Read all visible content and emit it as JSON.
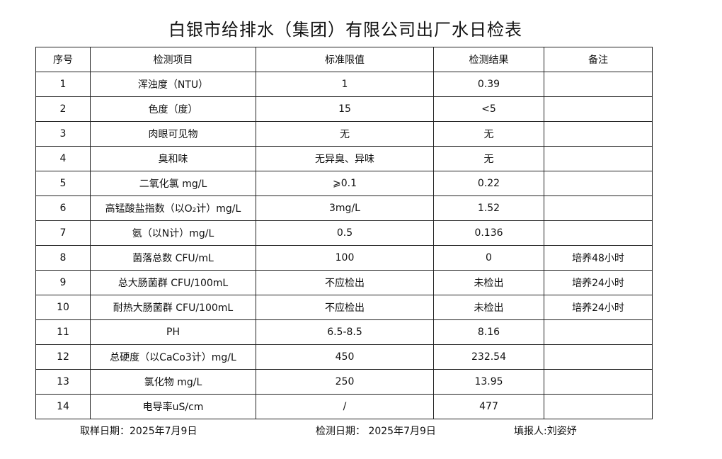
{
  "title": "白银市给排水（集团）有限公司出厂水日检表",
  "headers": [
    "序号",
    "检测项目",
    "标准限值",
    "检测结果",
    "备注"
  ],
  "rows": [
    [
      "1",
      "浑浊度（NTU）",
      "1",
      "0.39",
      ""
    ],
    [
      "2",
      "色度（度）",
      "15",
      "<5",
      ""
    ],
    [
      "3",
      "肉眼可见物",
      "无",
      "无",
      ""
    ],
    [
      "4",
      "臭和味",
      "无异臭、异味",
      "无",
      ""
    ],
    [
      "5",
      "二氧化氯 mg/L",
      "⩾0.1",
      "0.22",
      ""
    ],
    [
      "6",
      "高锰酸盐指数（以O₂计）mg/L",
      "3mg/L",
      "1.52",
      ""
    ],
    [
      "7",
      "氨（以N计）mg/L",
      "0.5",
      "0.136",
      ""
    ],
    [
      "8",
      "菌落总数 CFU/mL",
      "100",
      "0",
      "培养48小时"
    ],
    [
      "9",
      "总大肠菌群 CFU/100mL",
      "不应检出",
      "未检出",
      "培养24小时"
    ],
    [
      "10",
      "耐热大肠菌群 CFU/100mL",
      "不应检出",
      "未检出",
      "培养24小时"
    ],
    [
      "11",
      "PH",
      "6.5-8.5",
      "8.16",
      ""
    ],
    [
      "12",
      "总硬度（以CaCo3计）mg/L",
      "450",
      "232.54",
      ""
    ],
    [
      "13",
      "氯化物 mg/L",
      "250",
      "13.95",
      ""
    ],
    [
      "14",
      "电导率uS/cm",
      "/",
      "477",
      ""
    ]
  ],
  "footer": {
    "sample_date": "取样日期：2025年7月9日",
    "test_date": "检测日期： 2025年7月9日",
    "reporter": "填报人:刘姿妤"
  }
}
